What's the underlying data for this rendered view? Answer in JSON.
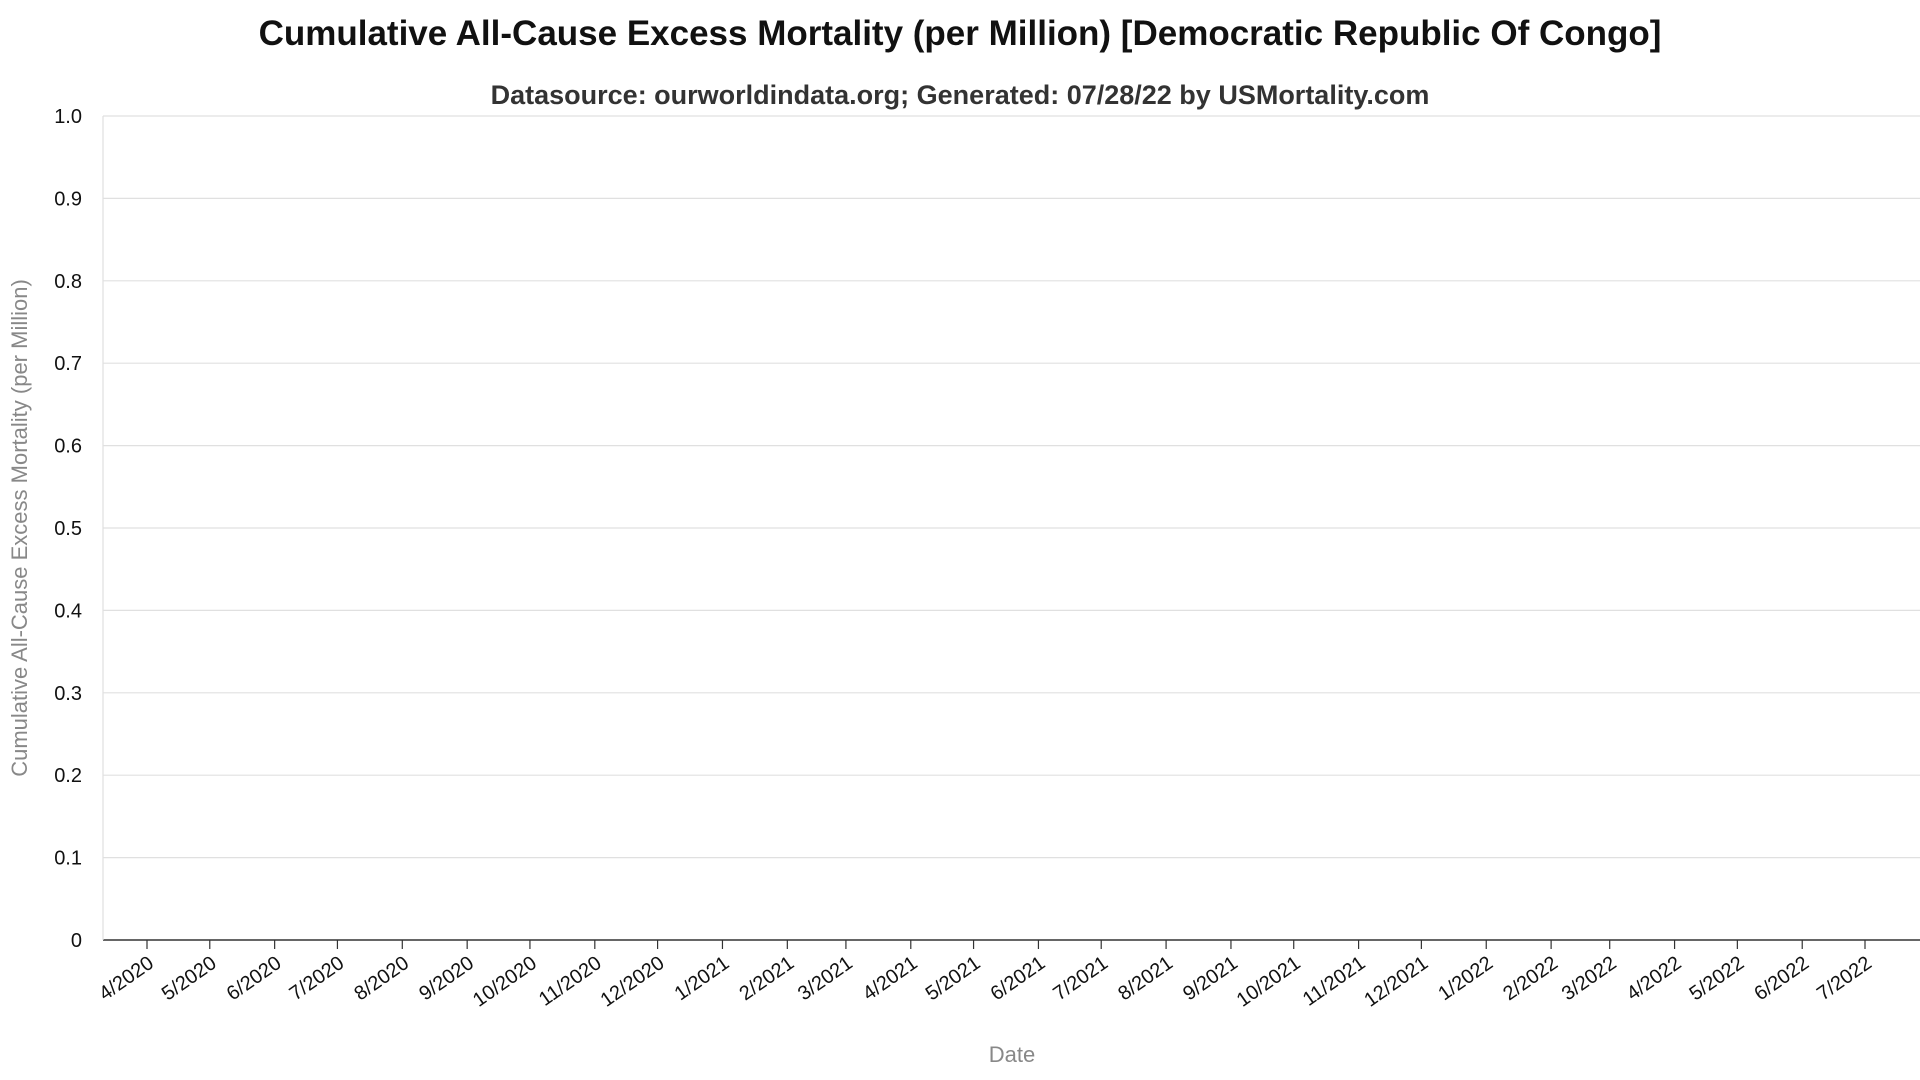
{
  "chart_data": {
    "type": "line",
    "title": "Cumulative All-Cause Excess Mortality (per Million) [Democratic Republic Of Congo]",
    "subtitle": "Datasource: ourworldindata.org; Generated: 07/28/22 by USMortality.com",
    "xlabel": "Date",
    "ylabel": "Cumulative All-Cause Excess Mortality (per Million)",
    "ylim": [
      0,
      1
    ],
    "y_ticks": [
      "0",
      "0.1",
      "0.2",
      "0.3",
      "0.4",
      "0.5",
      "0.6",
      "0.7",
      "0.8",
      "0.9",
      "1.0"
    ],
    "x_ticks": [
      "4/2020",
      "5/2020",
      "6/2020",
      "7/2020",
      "8/2020",
      "9/2020",
      "10/2020",
      "11/2020",
      "12/2020",
      "1/2021",
      "2/2021",
      "3/2021",
      "4/2021",
      "5/2021",
      "6/2021",
      "7/2021",
      "8/2021",
      "9/2021",
      "10/2021",
      "11/2021",
      "12/2021",
      "1/2022",
      "2/2022",
      "3/2022",
      "4/2022",
      "5/2022",
      "6/2022",
      "7/2022"
    ],
    "grid": true,
    "series": []
  }
}
